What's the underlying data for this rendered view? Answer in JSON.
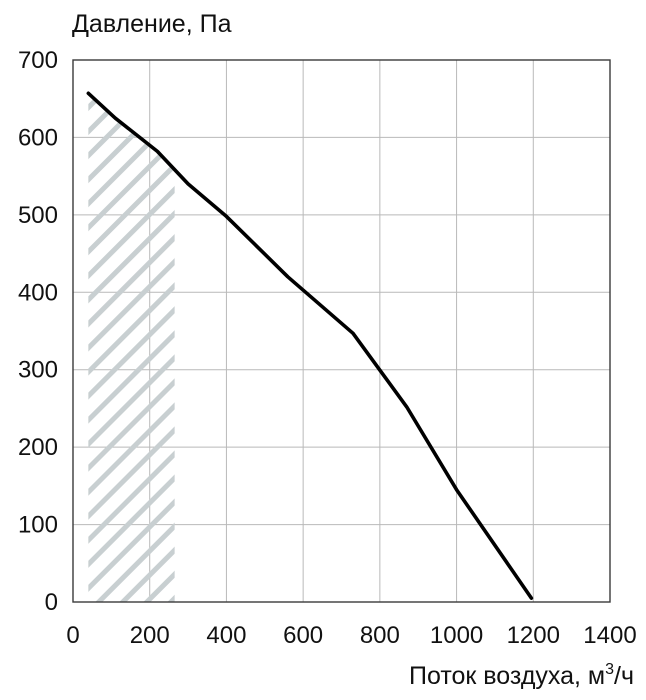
{
  "chart_data": {
    "type": "line",
    "ylabel": "Давление, Па",
    "xlabel_prefix": "Поток воздуха, м",
    "xlabel_sup": "3",
    "xlabel_suffix": "/ч",
    "xlim": [
      0,
      1400
    ],
    "ylim": [
      0,
      700
    ],
    "x_ticks": [
      "0",
      "200",
      "400",
      "600",
      "800",
      "1000",
      "1200",
      "1400"
    ],
    "y_ticks": [
      "0",
      "100",
      "200",
      "300",
      "400",
      "500",
      "600",
      "700"
    ],
    "grid": true,
    "hatched_region": {
      "x_from": 40,
      "x_to": 265
    },
    "series": [
      {
        "line_color": "#000000",
        "x": [
          40,
          110,
          220,
          300,
          400,
          560,
          730,
          870,
          1000,
          1195
        ],
        "y": [
          657,
          625,
          582,
          540,
          498,
          420,
          347,
          252,
          145,
          5
        ]
      }
    ]
  }
}
